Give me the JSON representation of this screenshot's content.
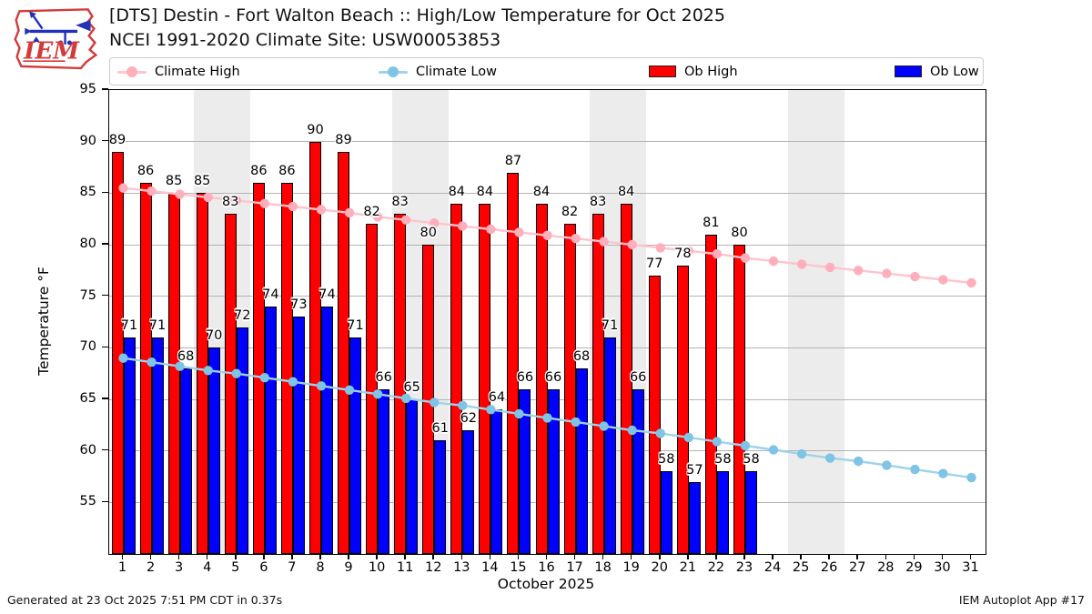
{
  "header": {
    "title_line1": "[DTS] Destin - Fort Walton Beach :: High/Low Temperature for Oct 2025",
    "title_line2": "NCEI 1991-2020 Climate Site: USW00053853",
    "logo_text": "IEM"
  },
  "legend": {
    "items": [
      {
        "label": "Climate High",
        "type": "line",
        "color": "#ffc4ce",
        "marker_color": "#ffaebc"
      },
      {
        "label": "Climate Low",
        "type": "line",
        "color": "#9ed3ea",
        "marker_color": "#7fc4e4"
      },
      {
        "label": "Ob High",
        "type": "swatch",
        "color": "#ff0000"
      },
      {
        "label": "Ob Low",
        "type": "swatch",
        "color": "#0000ff"
      }
    ]
  },
  "chart_data": {
    "type": "bar",
    "title": "[DTS] Destin - Fort Walton Beach :: High/Low Temperature for Oct 2025",
    "subtitle": "NCEI 1991-2020 Climate Site: USW00053853",
    "xlabel": "October 2025",
    "ylabel": "Temperature °F",
    "ylim": [
      50,
      95
    ],
    "yticks": [
      55,
      60,
      65,
      70,
      75,
      80,
      85,
      90,
      95
    ],
    "x_days": [
      1,
      2,
      3,
      4,
      5,
      6,
      7,
      8,
      9,
      10,
      11,
      12,
      13,
      14,
      15,
      16,
      17,
      18,
      19,
      20,
      21,
      22,
      23,
      24,
      25,
      26,
      27,
      28,
      29,
      30,
      31
    ],
    "weekend_bands": [
      [
        3.5,
        5.5
      ],
      [
        10.5,
        12.5
      ],
      [
        17.5,
        19.5
      ],
      [
        24.5,
        26.5
      ]
    ],
    "band_color": "#ececec",
    "grid": true,
    "grid_color": "#b3b3b3",
    "legend_position": "top",
    "series": [
      {
        "name": "Climate High",
        "type": "line",
        "color": "#ffc4ce",
        "marker_color": "#ffaebc",
        "values": [
          85.5,
          85.2,
          84.9,
          84.6,
          84.3,
          84.0,
          83.7,
          83.4,
          83.1,
          82.7,
          82.4,
          82.1,
          81.8,
          81.5,
          81.2,
          80.9,
          80.6,
          80.3,
          80.0,
          79.7,
          79.4,
          79.1,
          78.7,
          78.4,
          78.1,
          77.8,
          77.5,
          77.2,
          76.9,
          76.6,
          76.3
        ]
      },
      {
        "name": "Climate Low",
        "type": "line",
        "color": "#9ed3ea",
        "marker_color": "#7fc4e4",
        "values": [
          69.0,
          68.6,
          68.2,
          67.8,
          67.5,
          67.1,
          66.7,
          66.3,
          65.9,
          65.5,
          65.1,
          64.7,
          64.4,
          64.0,
          63.6,
          63.2,
          62.8,
          62.4,
          62.0,
          61.7,
          61.3,
          60.9,
          60.5,
          60.1,
          59.7,
          59.3,
          59.0,
          58.6,
          58.2,
          57.8,
          57.4
        ]
      },
      {
        "name": "Ob High",
        "type": "bar",
        "color": "#ff0000",
        "values": [
          89,
          86,
          85,
          85,
          83,
          86,
          86,
          90,
          89,
          82,
          83,
          80,
          84,
          84,
          87,
          84,
          82,
          83,
          84,
          77,
          78,
          81,
          80
        ]
      },
      {
        "name": "Ob Low",
        "type": "bar",
        "color": "#0000ff",
        "values": [
          71,
          71,
          68,
          70,
          72,
          74,
          73,
          74,
          71,
          66,
          65,
          61,
          62,
          64,
          66,
          66,
          68,
          71,
          66,
          58,
          57,
          58,
          58
        ]
      }
    ]
  },
  "footer": {
    "generated": "Generated at 23 Oct 2025 7:51 PM CDT in 0.37s",
    "app": "IEM Autoplot App #17"
  }
}
